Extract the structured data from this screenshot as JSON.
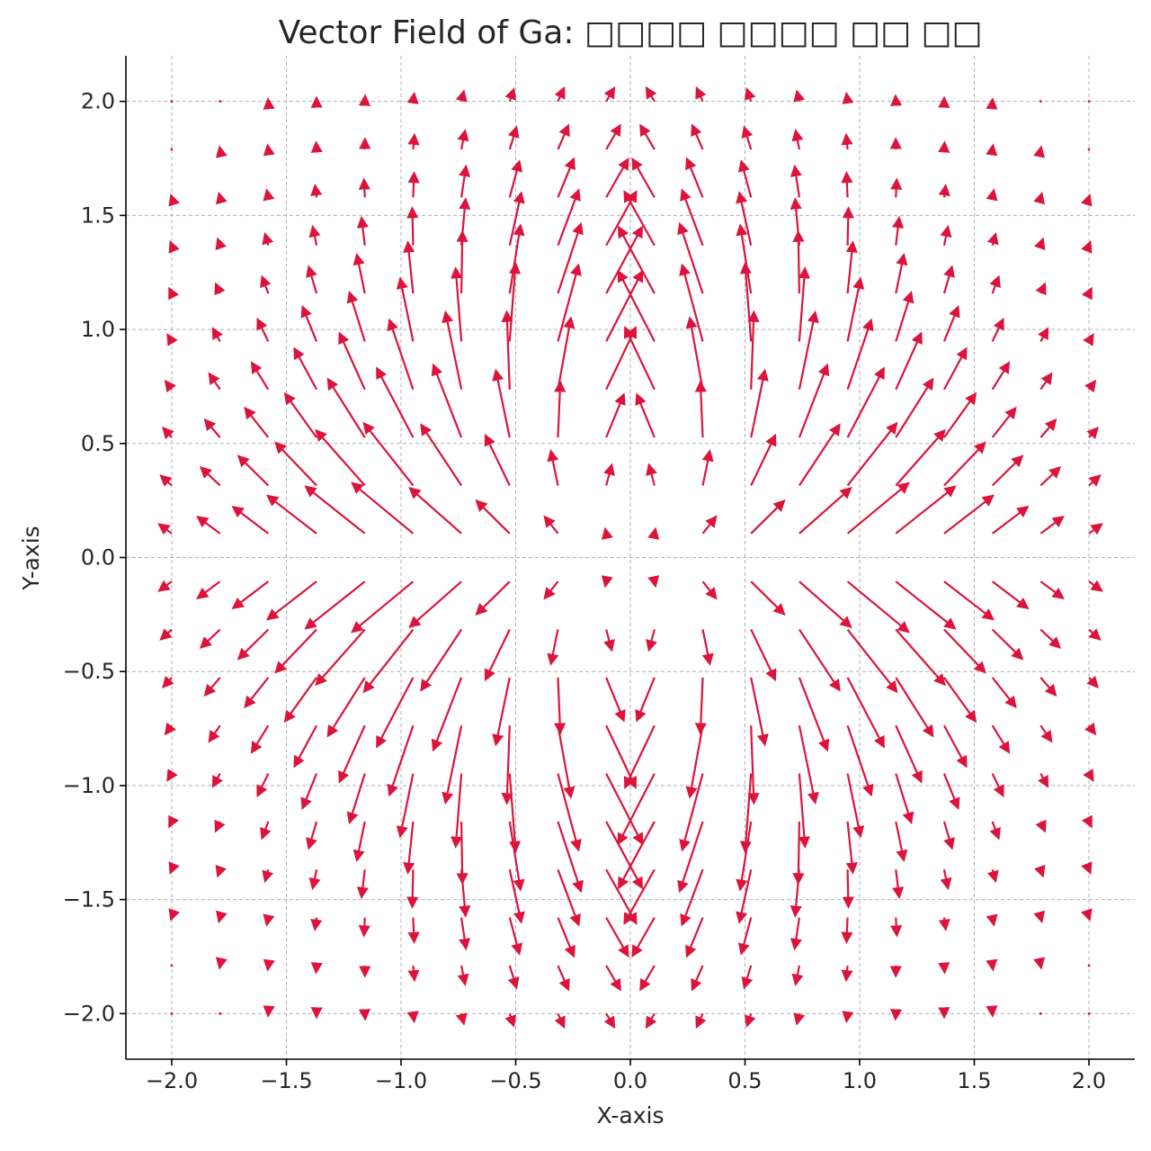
{
  "chart_data": {
    "type": "quiver",
    "title": "Vector Field of Ga: □□□□ □□□□ □□ □□",
    "xlabel": "X-axis",
    "ylabel": "Y-axis",
    "xlim": [
      -2.2,
      2.2
    ],
    "ylim": [
      -2.2,
      2.2
    ],
    "xticks": [
      -2.0,
      -1.5,
      -1.0,
      -0.5,
      0.0,
      0.5,
      1.0,
      1.5,
      2.0
    ],
    "yticks": [
      -2.0,
      -1.5,
      -1.0,
      -0.5,
      0.0,
      0.5,
      1.0,
      1.5,
      2.0
    ],
    "xtick_labels": [
      "−2.0",
      "−1.5",
      "−1.0",
      "−0.5",
      "0.0",
      "0.5",
      "1.0",
      "1.5",
      "2.0"
    ],
    "ytick_labels": [
      "−2.0",
      "−1.5",
      "−1.0",
      "−0.5",
      "0.0",
      "0.5",
      "1.0",
      "1.5",
      "2.0"
    ],
    "grid": true,
    "color": "#dc143c",
    "grid_x": {
      "start": -2.0,
      "stop": 2.0,
      "count": 20
    },
    "grid_y": {
      "start": -2.0,
      "stop": 2.0,
      "count": 20
    },
    "field": {
      "expression": "r = sqrt(x^2 + y^2); magnitude = 2.76 * r^2 * exp(-r^2); direction = (x/r, y/r) + 0.66 * rotate90(x/r, y/r) * sign(x) * sign(y)",
      "description": "outward-radial field with strength peaking near r = 1, swirled so flow converges toward the vertical axis"
    }
  }
}
